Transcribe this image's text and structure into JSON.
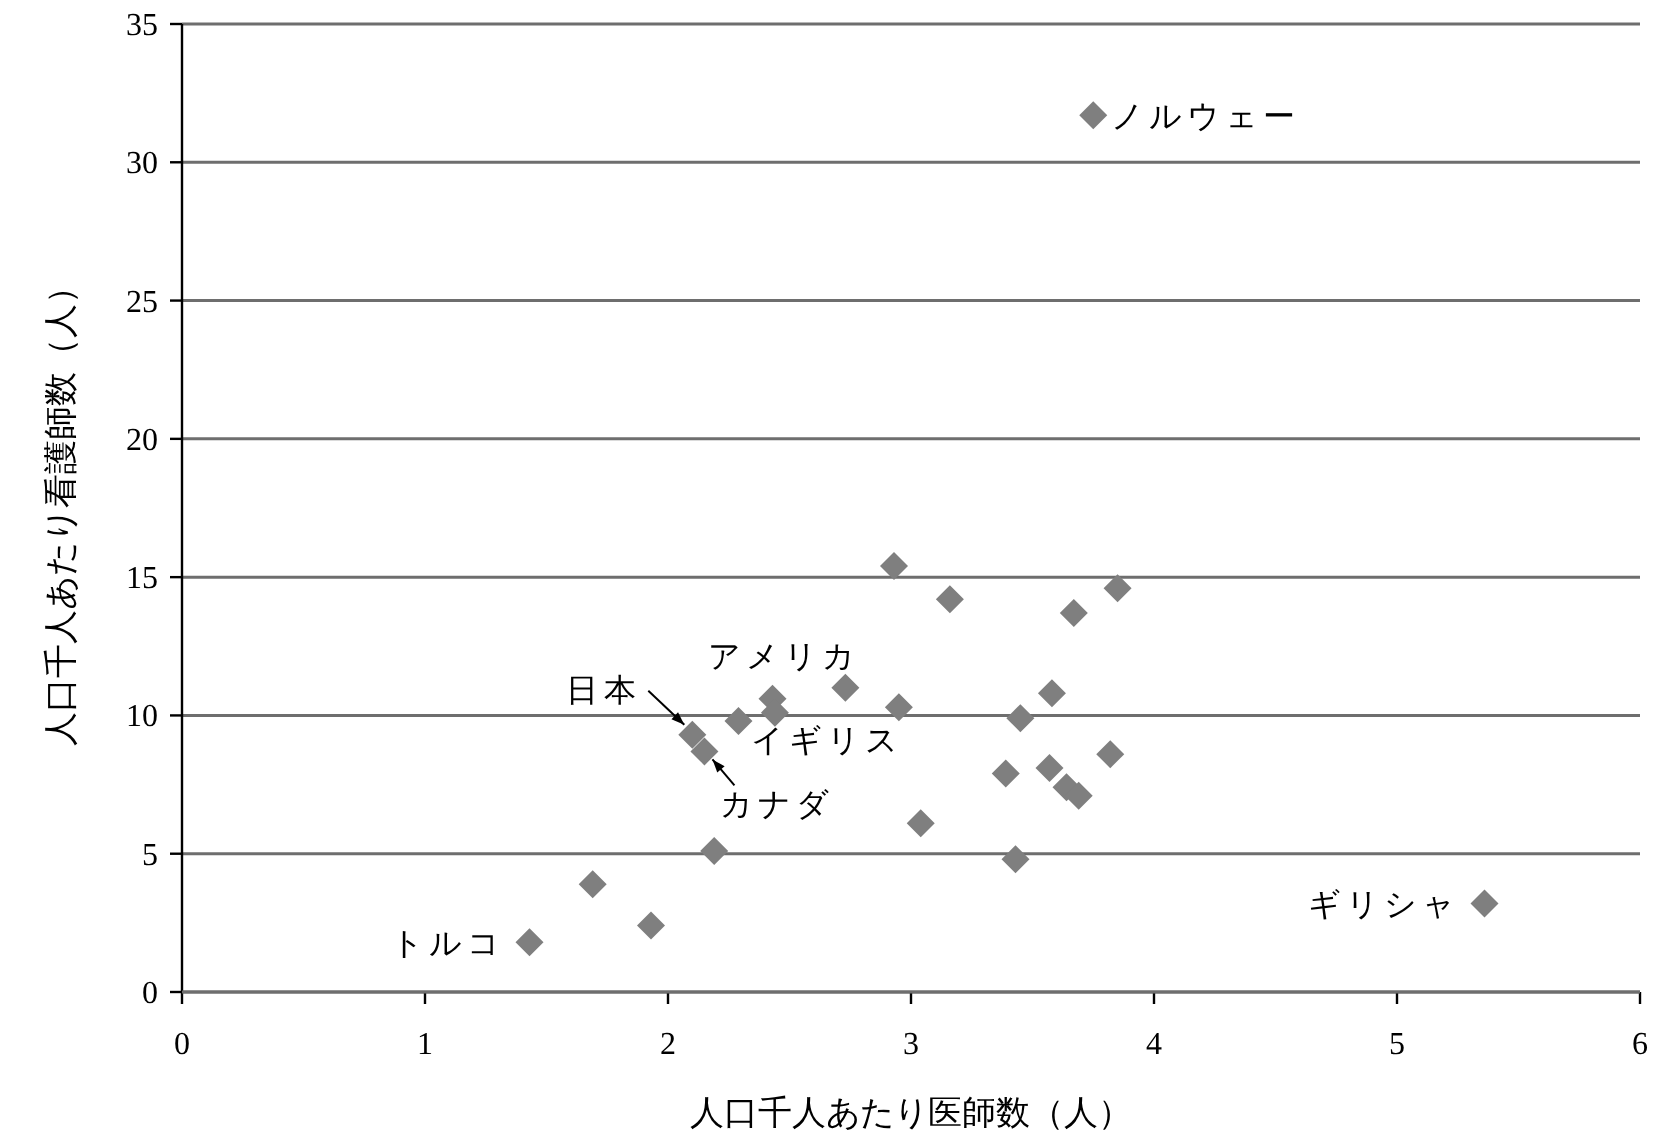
{
  "chart_data": {
    "type": "scatter",
    "xlabel": "人口千人あたり医師数（人）",
    "ylabel": "人口千人あたり看護師数（人）",
    "series": [
      {
        "color": "#7f7f7f",
        "x": [
          3.75,
          5.36,
          1.43,
          1.69,
          1.93,
          2.19,
          2.1,
          2.15,
          2.29,
          2.43,
          2.44,
          2.73,
          2.95,
          2.93,
          3.16,
          3.04,
          3.39,
          3.43,
          3.45,
          3.58,
          3.57,
          3.64,
          3.69,
          3.67,
          3.85,
          3.82
        ],
        "values": [
          31.7,
          3.2,
          1.8,
          3.9,
          2.4,
          5.1,
          9.3,
          8.7,
          9.8,
          10.6,
          10.1,
          11.0,
          10.3,
          15.4,
          14.2,
          6.1,
          7.9,
          4.8,
          9.9,
          10.8,
          8.1,
          7.4,
          7.1,
          13.7,
          14.6,
          8.6
        ]
      }
    ],
    "annotations": [
      {
        "text": "ノルウェー",
        "x": 3.75,
        "y": 31.7
      },
      {
        "text": "ギリシャ",
        "x": 5.36,
        "y": 3.2
      },
      {
        "text": "トルコ",
        "x": 1.43,
        "y": 1.8
      },
      {
        "text": "アメリカ",
        "x": 2.43,
        "y": 10.6
      },
      {
        "text": "イギリス",
        "x": 2.44,
        "y": 10.1
      },
      {
        "text": "日本",
        "x": 2.1,
        "y": 9.3
      },
      {
        "text": "カナダ",
        "x": 2.15,
        "y": 8.7
      }
    ],
    "xlim": [
      0,
      6
    ],
    "ylim": [
      0,
      35
    ],
    "xticks": [
      0,
      1,
      2,
      3,
      4,
      5,
      6
    ],
    "yticks": [
      0,
      5,
      10,
      15,
      20,
      25,
      30,
      35
    ],
    "grid": "y",
    "marker": "diamond"
  }
}
